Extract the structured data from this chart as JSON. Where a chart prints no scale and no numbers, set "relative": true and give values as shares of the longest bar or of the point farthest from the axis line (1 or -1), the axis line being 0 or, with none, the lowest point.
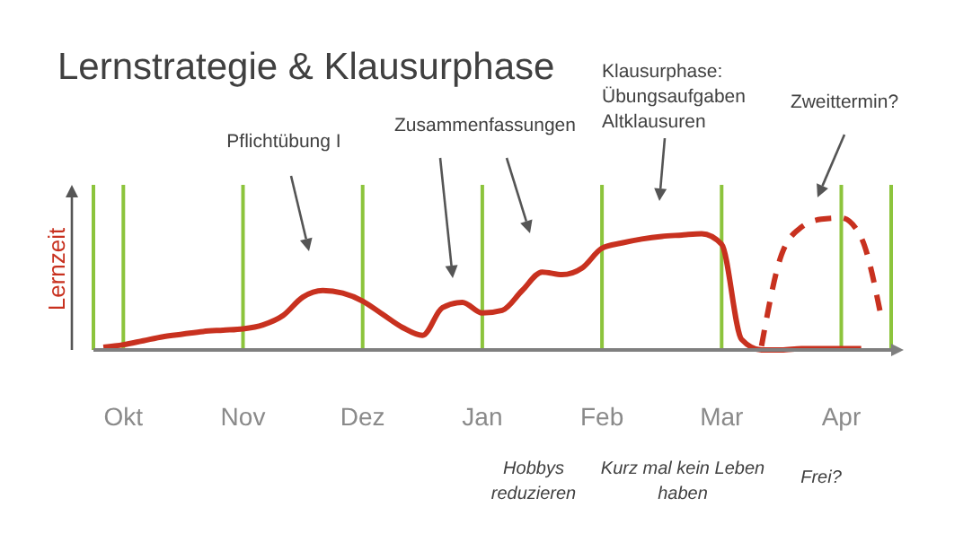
{
  "chart_data": {
    "type": "line",
    "title": "Lernstrategie & Klausurphase",
    "ylabel": "Lernzeit",
    "relative": true,
    "grid": "x",
    "categories": [
      null,
      "Okt",
      null,
      null,
      null,
      null,
      null,
      "Nov",
      null,
      null,
      null,
      null,
      null,
      "Dez",
      null,
      null,
      null,
      null,
      null,
      "Jan",
      null,
      null,
      null,
      null,
      null,
      "Feb",
      null,
      null,
      null,
      null,
      null,
      "Mar",
      null,
      null,
      null,
      null,
      null,
      "Apr",
      null,
      null
    ],
    "annotations": [
      "Pflichtübung I",
      "Zusammenfassungen",
      "Klausurphase:\nÜbungsaufgaben\nAltklausuren",
      "Zweittermin?",
      "Hobbys\nreduzieren",
      "Kurz mal kein Leben\nhaben",
      "Frei?"
    ],
    "series": [
      {
        "color": "#c8311f",
        "line_style": "solid",
        "values": [
          0.02,
          0.04,
          0.07,
          0.1,
          0.12,
          0.14,
          0.15,
          0.16,
          0.19,
          0.26,
          0.4,
          0.45,
          0.43,
          0.37,
          0.27,
          0.17,
          0.11,
          0.32,
          0.36,
          0.28,
          0.3,
          0.45,
          0.59,
          0.57,
          0.62,
          0.77,
          0.81,
          0.84,
          0.86,
          0.87,
          0.88,
          0.8,
          0.08,
          0.0,
          0.0,
          0.01,
          0.01,
          0.01,
          0.01,
          null
        ]
      },
      {
        "color": "#c8311f",
        "line_style": "dashed",
        "values": [
          null,
          null,
          null,
          null,
          null,
          null,
          null,
          null,
          null,
          null,
          null,
          null,
          null,
          null,
          null,
          null,
          null,
          null,
          null,
          null,
          null,
          null,
          null,
          null,
          null,
          null,
          null,
          null,
          null,
          null,
          null,
          null,
          null,
          0.03,
          0.72,
          0.93,
          0.99,
          1.0,
          0.85,
          0.25
        ]
      }
    ]
  }
}
